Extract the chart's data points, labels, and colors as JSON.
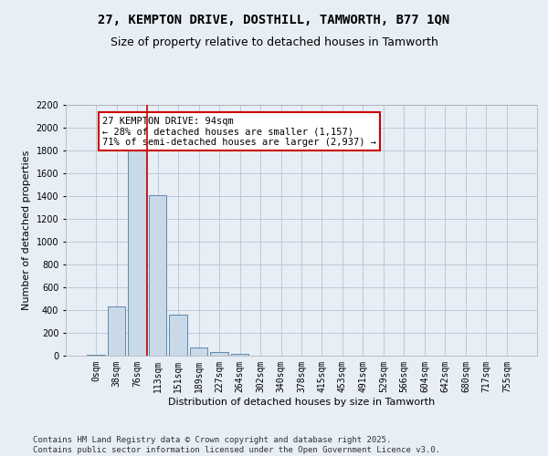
{
  "title_line1": "27, KEMPTON DRIVE, DOSTHILL, TAMWORTH, B77 1QN",
  "title_line2": "Size of property relative to detached houses in Tamworth",
  "xlabel": "Distribution of detached houses by size in Tamworth",
  "ylabel": "Number of detached properties",
  "categories": [
    "0sqm",
    "38sqm",
    "76sqm",
    "113sqm",
    "151sqm",
    "189sqm",
    "227sqm",
    "264sqm",
    "302sqm",
    "340sqm",
    "378sqm",
    "415sqm",
    "453sqm",
    "491sqm",
    "529sqm",
    "566sqm",
    "604sqm",
    "642sqm",
    "680sqm",
    "717sqm",
    "755sqm"
  ],
  "values": [
    10,
    430,
    1840,
    1410,
    360,
    75,
    30,
    15,
    0,
    0,
    0,
    0,
    0,
    0,
    0,
    0,
    0,
    0,
    0,
    0,
    0
  ],
  "bar_color": "#c9d9e8",
  "bar_edge_color": "#5a8ab0",
  "grid_color": "#c0c8d8",
  "background_color": "#e8eef5",
  "annotation_text": "27 KEMPTON DRIVE: 94sqm\n← 28% of detached houses are smaller (1,157)\n71% of semi-detached houses are larger (2,937) →",
  "annotation_box_color": "#ffffff",
  "annotation_border_color": "#cc0000",
  "ylim": [
    0,
    2200
  ],
  "yticks": [
    0,
    200,
    400,
    600,
    800,
    1000,
    1200,
    1400,
    1600,
    1800,
    2000,
    2200
  ],
  "footnote1": "Contains HM Land Registry data © Crown copyright and database right 2025.",
  "footnote2": "Contains public sector information licensed under the Open Government Licence v3.0.",
  "title_fontsize": 10,
  "subtitle_fontsize": 9,
  "axis_label_fontsize": 8,
  "tick_fontsize": 7,
  "annotation_fontsize": 7.5,
  "footnote_fontsize": 6.5
}
